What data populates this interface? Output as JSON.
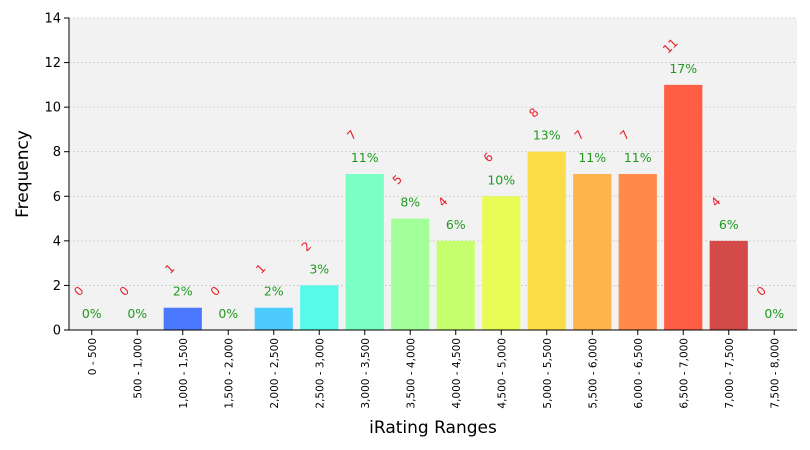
{
  "chart_data": {
    "type": "bar",
    "title": "",
    "xlabel": "iRating Ranges",
    "ylabel": "Frequency",
    "ylim": [
      0,
      14
    ],
    "yticks": [
      0,
      2,
      4,
      6,
      8,
      10,
      12,
      14
    ],
    "grid": true,
    "categories": [
      "0 - 500",
      "500 - 1,000",
      "1,000 - 1,500",
      "1,500 - 2,000",
      "2,000 - 2,500",
      "2,500 - 3,000",
      "3,000 - 3,500",
      "3,500 - 4,000",
      "4,000 - 4,500",
      "4,500 - 5,000",
      "5,000 - 5,500",
      "5,500 - 6,000",
      "6,000 - 6,500",
      "6,500 - 7,000",
      "7,000 - 7,500",
      "7,500 - 8,000"
    ],
    "values": [
      0,
      0,
      1,
      0,
      1,
      2,
      7,
      5,
      4,
      6,
      8,
      7,
      7,
      11,
      4,
      0
    ],
    "count_labels": [
      "0",
      "0",
      "1",
      "0",
      "1",
      "2",
      "7",
      "5",
      "4",
      "6",
      "8",
      "7",
      "7",
      "11",
      "4",
      "0"
    ],
    "percent_labels": [
      "0%",
      "0%",
      "2%",
      "0%",
      "2%",
      "3%",
      "11%",
      "8%",
      "6%",
      "10%",
      "13%",
      "11%",
      "11%",
      "17%",
      "6%",
      "0%"
    ],
    "colors": [
      "#3a5bff",
      "#3a5bff",
      "#4a78ff",
      "#4aa8ff",
      "#4dcbff",
      "#55fbe8",
      "#7affc4",
      "#a3ff99",
      "#c6ff6e",
      "#e9fc55",
      "#fcdd48",
      "#fdb44a",
      "#ff8a4a",
      "#ff5e45",
      "#d44a48",
      "#d44a48"
    ],
    "count_label_color": "#e8202a",
    "percent_label_color": "#1f9a1f",
    "plot_background": "#f2f2f2"
  }
}
